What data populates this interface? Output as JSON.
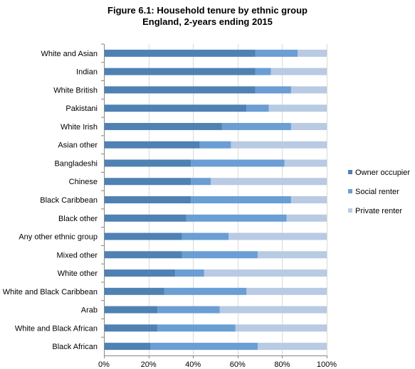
{
  "chart_data": {
    "type": "bar",
    "orientation": "horizontal",
    "stacked": true,
    "title": "Figure 6.1: Household tenure by ethnic group",
    "subtitle": "England, 2-years ending 2015",
    "xlabel": "",
    "ylabel": "",
    "xlim": [
      0,
      100
    ],
    "x_ticks": [
      "0%",
      "20%",
      "40%",
      "60%",
      "80%",
      "100%"
    ],
    "categories": [
      "White and Asian",
      "Indian",
      "White British",
      "Pakistani",
      "White Irish",
      "Asian other",
      "Bangladeshi",
      "Chinese",
      "Black Caribbean",
      "Black other",
      "Any other ethnic group",
      "Mixed other",
      "White other",
      "White and Black Caribbean",
      "Arab",
      "White and Black African",
      "Black African"
    ],
    "series": [
      {
        "name": "Owner occupier",
        "color": "#4f81b3",
        "values": [
          68,
          68,
          68,
          64,
          53,
          43,
          39,
          39,
          39,
          37,
          35,
          35,
          32,
          27,
          24,
          24,
          21
        ]
      },
      {
        "name": "Social renter",
        "color": "#6a9ed4",
        "values": [
          19,
          7,
          16,
          10,
          31,
          14,
          42,
          9,
          45,
          45,
          21,
          34,
          13,
          37,
          28,
          35,
          48
        ]
      },
      {
        "name": "Private renter",
        "color": "#b9cae3",
        "values": [
          13,
          25,
          16,
          26,
          16,
          43,
          19,
          52,
          16,
          18,
          44,
          31,
          55,
          36,
          48,
          41,
          31
        ]
      }
    ],
    "grid": true,
    "legend_position": "right"
  }
}
